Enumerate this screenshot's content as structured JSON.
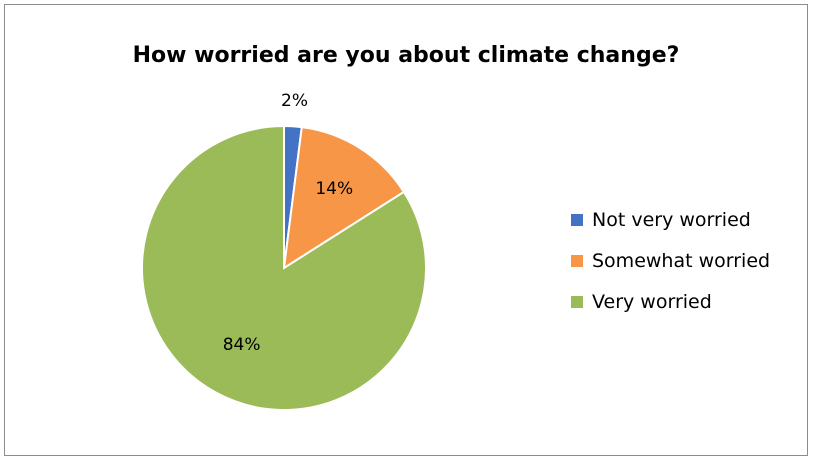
{
  "chart_data": {
    "type": "pie",
    "title": "How worried are you about climate change?",
    "categories": [
      "Not very worried",
      "Somewhat worried",
      "Very worried"
    ],
    "values": [
      2,
      14,
      84
    ],
    "data_labels": [
      "2%",
      "14%",
      "84%"
    ],
    "colors": [
      "#4472c4",
      "#f79646",
      "#9bbb59"
    ],
    "legend_position": "right"
  }
}
